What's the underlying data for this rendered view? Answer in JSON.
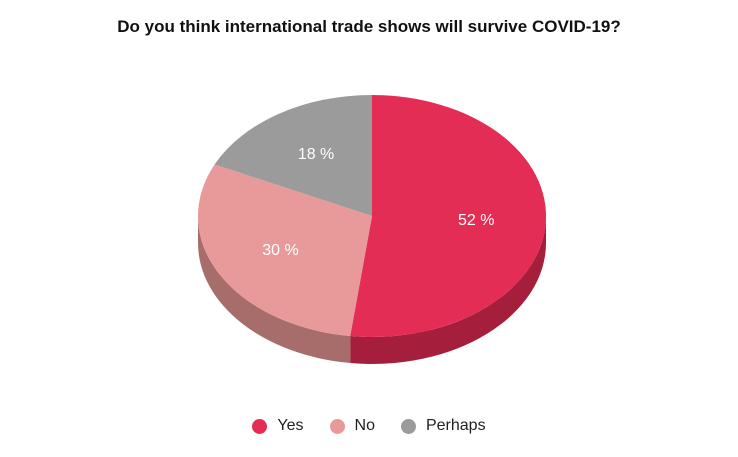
{
  "chart_data": {
    "type": "pie",
    "title": "Do you think international trade shows will survive COVID-19?",
    "slices": [
      {
        "name": "Yes",
        "value": 52,
        "label": "52 %",
        "color": "#e32d55",
        "side_color": "#a51f3c"
      },
      {
        "name": "No",
        "value": 30,
        "label": "30 %",
        "color": "#e89a9a",
        "side_color": "#a66d6a"
      },
      {
        "name": "Perhaps",
        "value": 18,
        "label": "18 %",
        "color": "#9b9b9b",
        "side_color": "#6f6f6f"
      }
    ],
    "legend_position": "bottom",
    "style": "3d"
  }
}
